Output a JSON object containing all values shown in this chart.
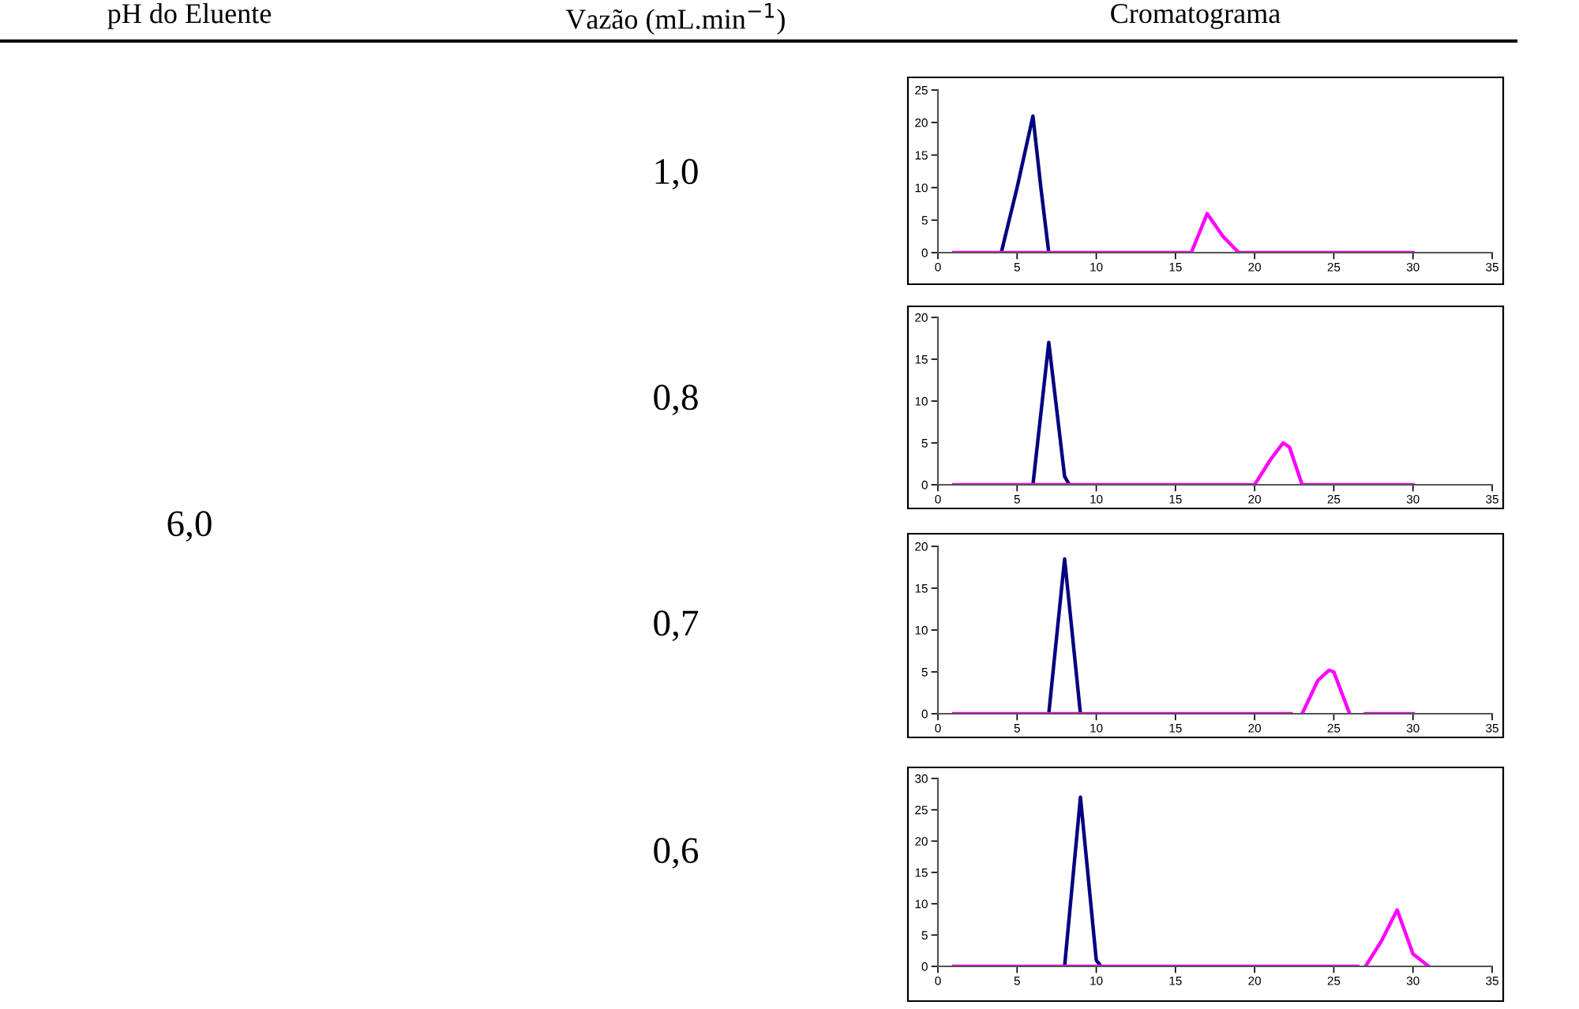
{
  "chart_data": [
    {
      "type": "other",
      "annotations": [
        "pH do Eluente",
        "Vazão (mL.min$^{−1}$)",
        "Cromatograma",
        "6,0",
        "1,0",
        "0,8",
        "0,7",
        "0,6"
      ]
    },
    {
      "type": "line",
      "xlim": [
        0,
        35
      ],
      "xticks": [
        0,
        5,
        10,
        15,
        20,
        25,
        30,
        35
      ],
      "ylim": [
        0,
        25
      ],
      "yticks": [
        0,
        5,
        10,
        15,
        20,
        25
      ],
      "grid": false,
      "marker": "none",
      "line_style": "solid",
      "series": [
        {
          "color": "#000080",
          "x": [
            4,
            4.5,
            5,
            6,
            6.5,
            7
          ],
          "values": [
            0,
            5,
            10,
            21,
            10,
            0
          ]
        },
        {
          "color": "#ff00ff",
          "x": [
            1,
            16,
            17,
            18,
            19,
            30
          ],
          "values": [
            0,
            0,
            6,
            2.5,
            0,
            0
          ]
        }
      ]
    },
    {
      "type": "line",
      "xlim": [
        0,
        35
      ],
      "xticks": [
        0,
        5,
        10,
        15,
        20,
        25,
        30,
        35
      ],
      "ylim": [
        0,
        20
      ],
      "yticks": [
        0,
        5,
        10,
        15,
        20
      ],
      "grid": false,
      "marker": "none",
      "line_style": "solid",
      "series": [
        {
          "color": "#000080",
          "x": [
            6,
            7,
            8,
            8.3
          ],
          "values": [
            0,
            17,
            1,
            0
          ]
        },
        {
          "color": "#ff00ff",
          "x": [
            1,
            20,
            21,
            21.8,
            22.2,
            23,
            30
          ],
          "values": [
            0,
            0,
            3,
            5,
            4.5,
            0,
            0
          ]
        }
      ]
    },
    {
      "type": "line",
      "xlim": [
        0,
        35
      ],
      "xticks": [
        0,
        5,
        10,
        15,
        20,
        25,
        30,
        35
      ],
      "ylim": [
        0,
        20
      ],
      "yticks": [
        0,
        5,
        10,
        15,
        20
      ],
      "grid": false,
      "marker": "none",
      "line_style": "solid",
      "series": [
        {
          "color": "#000080",
          "x": [
            7,
            8,
            9
          ],
          "values": [
            0,
            18.5,
            0
          ]
        },
        {
          "color": "#ff00ff",
          "x": [
            1,
            22.3,
            22.6,
            23,
            24,
            24.7,
            25,
            26,
            26.5,
            27,
            30
          ],
          "values": [
            0,
            0,
            null,
            0,
            4,
            5.2,
            5,
            0,
            null,
            0,
            0
          ]
        }
      ]
    },
    {
      "type": "line",
      "xlim": [
        0,
        35
      ],
      "xticks": [
        0,
        5,
        10,
        15,
        20,
        25,
        30,
        35
      ],
      "ylim": [
        0,
        30
      ],
      "yticks": [
        0,
        5,
        10,
        15,
        20,
        25,
        30
      ],
      "grid": false,
      "marker": "none",
      "line_style": "solid",
      "series": [
        {
          "color": "#000080",
          "x": [
            8,
            9,
            10,
            10.3
          ],
          "values": [
            0,
            27,
            1,
            0
          ]
        },
        {
          "color": "#ff00ff",
          "x": [
            1,
            26.5,
            26.8,
            27,
            28,
            29,
            30,
            31
          ],
          "values": [
            0,
            0,
            null,
            0,
            4,
            9,
            2,
            0
          ]
        }
      ]
    }
  ]
}
